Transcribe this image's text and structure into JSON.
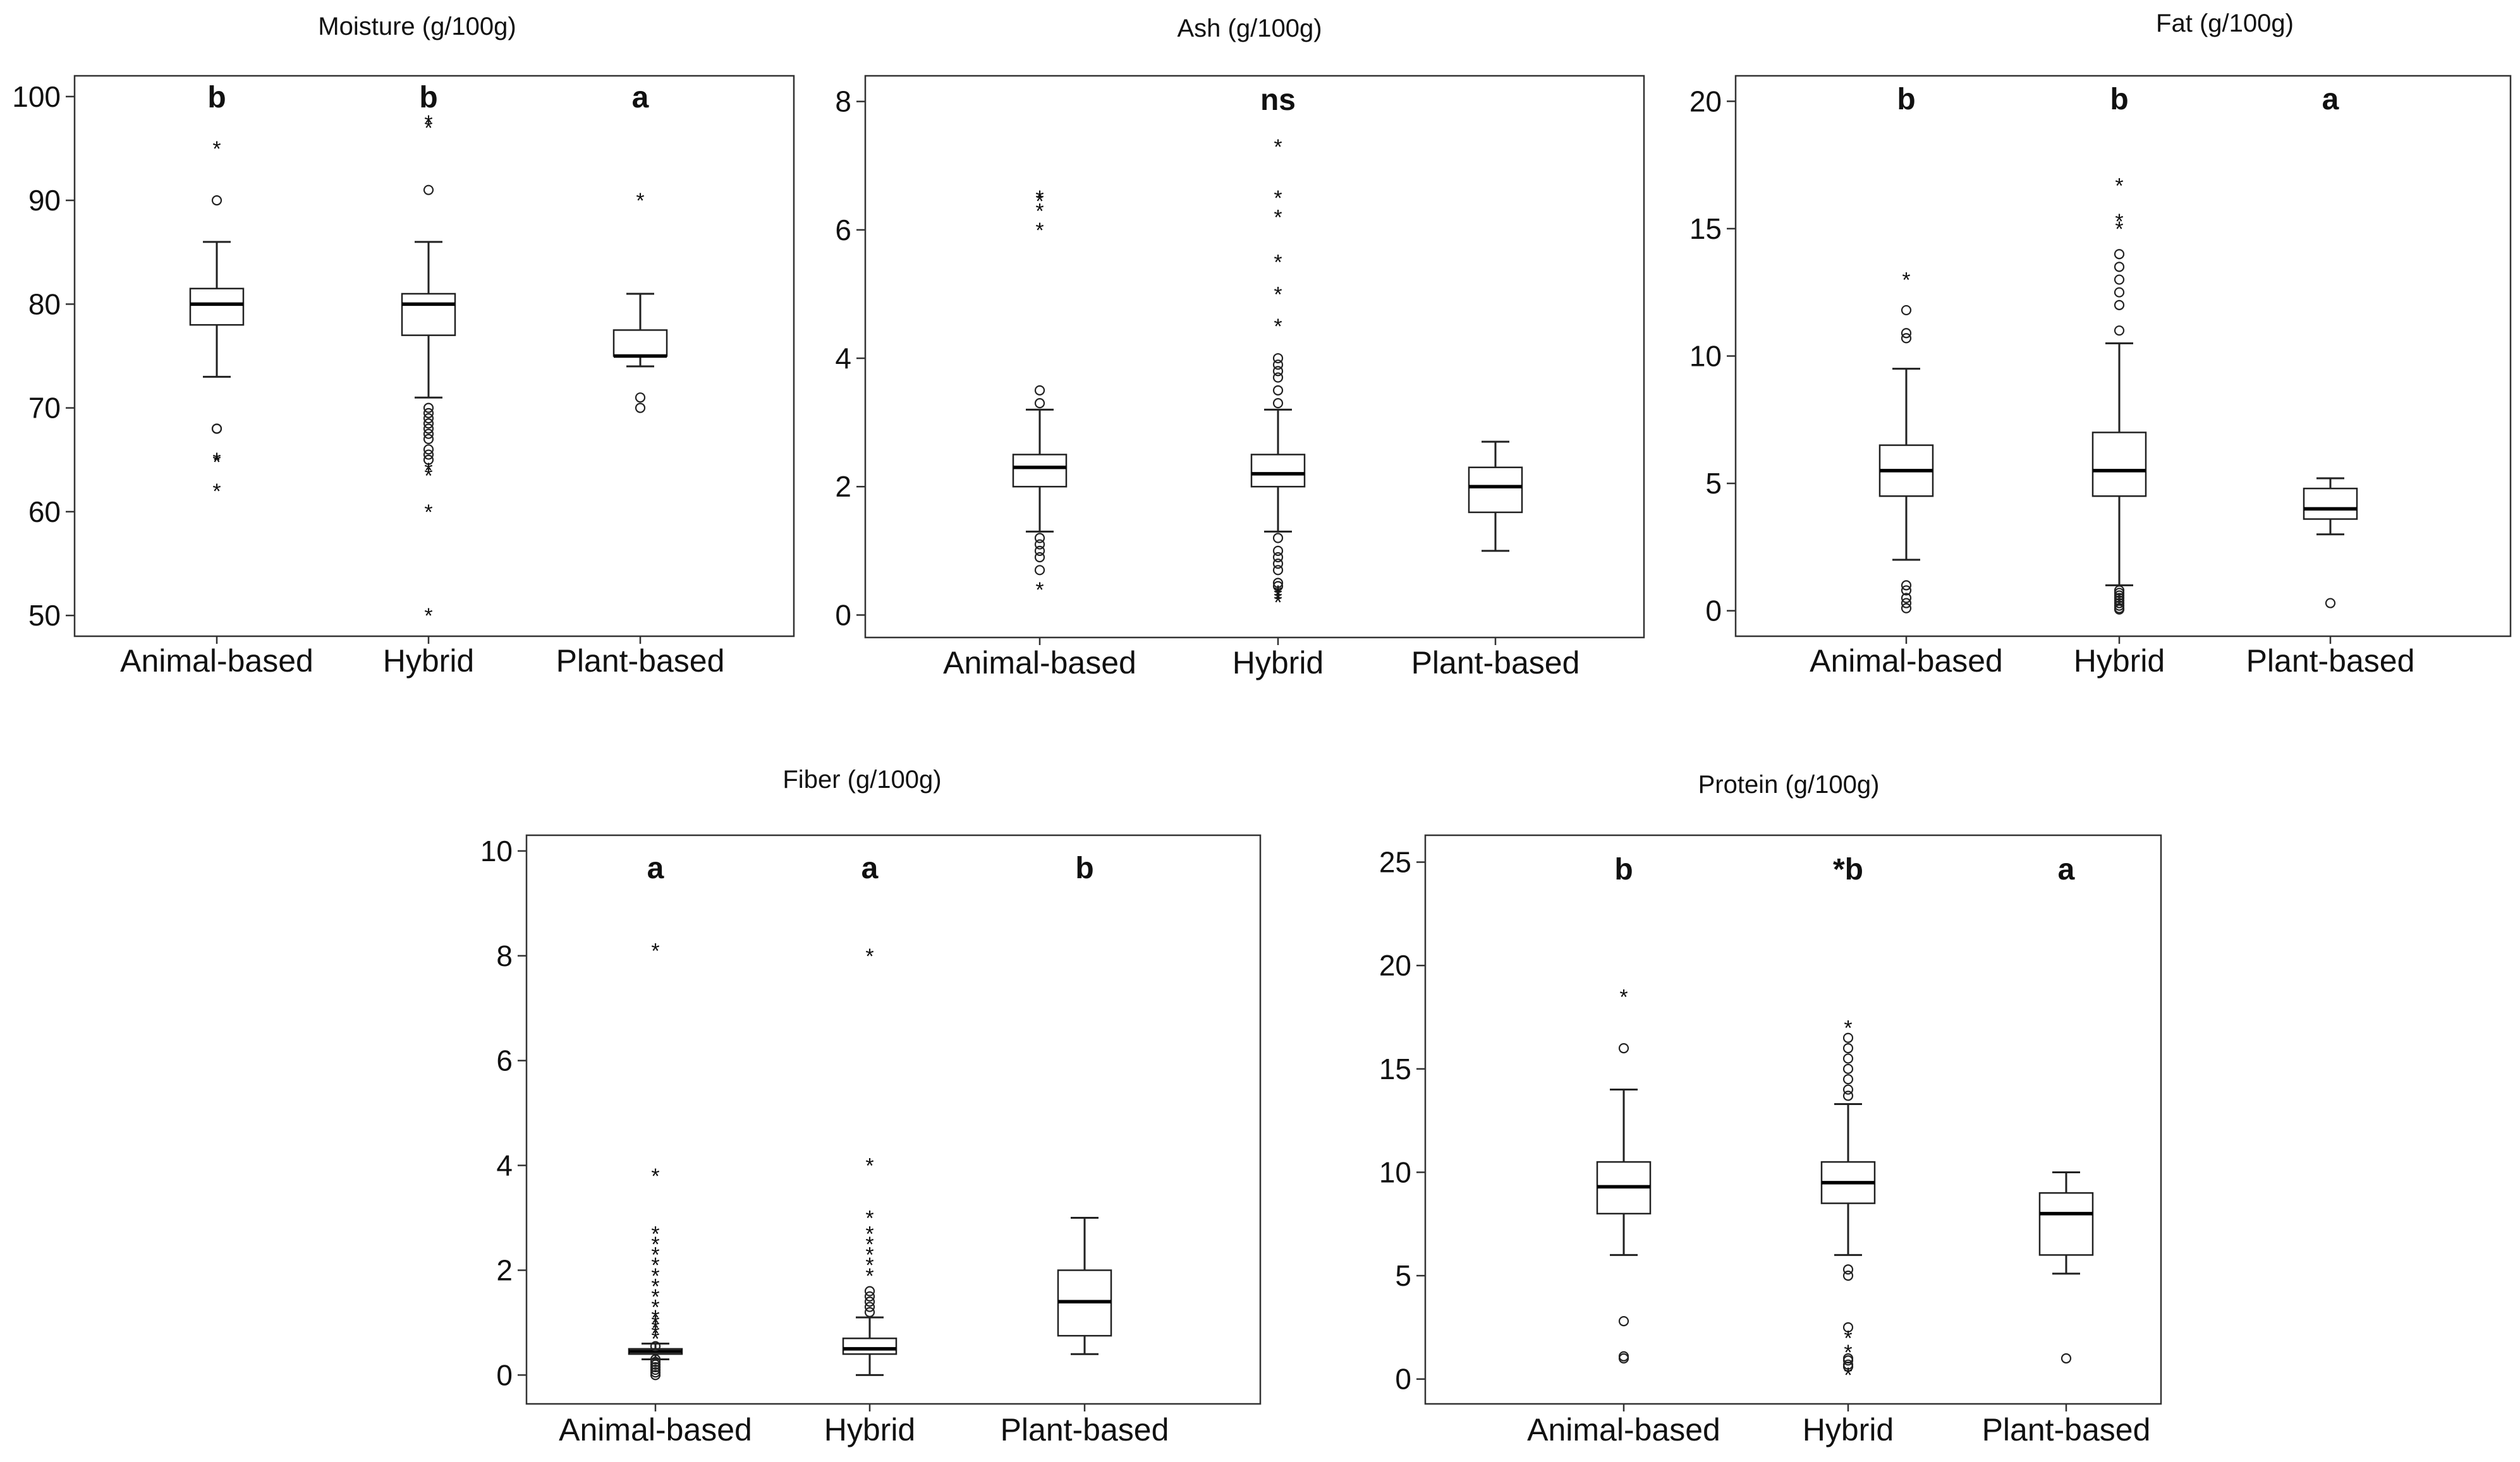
{
  "chart_data": [
    {
      "type": "boxplot",
      "title": "Moisture (g/100g)",
      "categories": [
        "Animal-based",
        "Hybrid",
        "Plant-based"
      ],
      "ylim": [
        48,
        102
      ],
      "yticks": [
        50,
        60,
        70,
        80,
        90,
        100
      ],
      "letters": [
        "b",
        "b",
        "a"
      ],
      "boxes": [
        {
          "name": "Animal-based",
          "min": 73,
          "q1": 78,
          "median": 80,
          "q3": 81.5,
          "max": 86,
          "outliers": [
            90,
            68,
            68
          ],
          "extremes": [
            95,
            64.8,
            65,
            62
          ]
        },
        {
          "name": "Hybrid",
          "min": 71,
          "q1": 77,
          "median": 80,
          "q3": 81,
          "max": 86,
          "outliers": [
            91,
            70,
            69.5,
            69,
            68.5,
            68,
            67.5,
            67,
            66,
            65.5,
            65
          ],
          "extremes": [
            97.5,
            97,
            64,
            63.5,
            60,
            50
          ]
        },
        {
          "name": "Plant-based",
          "min": 74,
          "q1": 75,
          "median": 75,
          "q3": 77.5,
          "max": 81,
          "outliers": [
            71,
            70
          ],
          "extremes": [
            90
          ]
        }
      ]
    },
    {
      "type": "boxplot",
      "title": "Ash (g/100g)",
      "categories": [
        "Animal-based",
        "Hybrid",
        "Plant-based"
      ],
      "ylim": [
        -0.35,
        8.4
      ],
      "yticks": [
        0,
        2,
        4,
        6,
        8
      ],
      "letters": [
        "",
        "ns",
        ""
      ],
      "boxes": [
        {
          "name": "Animal-based",
          "min": 1.3,
          "q1": 2.0,
          "median": 2.3,
          "q3": 2.5,
          "max": 3.2,
          "outliers": [
            3.5,
            3.3,
            1.2,
            1.1,
            1.0,
            0.9,
            0.7
          ],
          "extremes": [
            6.5,
            6.45,
            6.3,
            6.0,
            0.4
          ]
        },
        {
          "name": "Hybrid",
          "min": 1.3,
          "q1": 2.0,
          "median": 2.2,
          "q3": 2.5,
          "max": 3.2,
          "outliers": [
            4.0,
            3.9,
            3.8,
            3.7,
            3.5,
            3.3,
            1.2,
            1.0,
            0.9,
            0.8,
            0.7,
            0.5,
            0.45
          ],
          "extremes": [
            7.3,
            6.5,
            6.2,
            5.5,
            5.0,
            4.5,
            0.35,
            0.3,
            0.25,
            0.2
          ]
        },
        {
          "name": "Plant-based",
          "min": 1.0,
          "q1": 1.6,
          "median": 2.0,
          "q3": 2.3,
          "max": 2.7,
          "outliers": [],
          "extremes": []
        }
      ]
    },
    {
      "type": "boxplot",
      "title": "Fat (g/100g)",
      "categories": [
        "Animal-based",
        "Hybrid",
        "Plant-based"
      ],
      "ylim": [
        -1.0,
        21.0
      ],
      "yticks": [
        0,
        5,
        10,
        15,
        20
      ],
      "letters": [
        "b",
        "b",
        "a"
      ],
      "boxes": [
        {
          "name": "Animal-based",
          "min": 2.0,
          "q1": 4.5,
          "median": 5.5,
          "q3": 6.5,
          "max": 9.5,
          "outliers": [
            11.8,
            10.9,
            10.7,
            1.0,
            0.8,
            0.5,
            0.3,
            0.1
          ],
          "extremes": [
            13.0
          ]
        },
        {
          "name": "Hybrid",
          "min": 1.0,
          "q1": 4.5,
          "median": 5.5,
          "q3": 7.0,
          "max": 10.5,
          "outliers": [
            14.0,
            13.5,
            13.0,
            12.5,
            12.0,
            11.0,
            0.8,
            0.7,
            0.6,
            0.5,
            0.4,
            0.3,
            0.2,
            0.1,
            0.05
          ],
          "extremes": [
            16.7,
            15.3,
            15.0
          ]
        },
        {
          "name": "Plant-based",
          "min": 3.0,
          "q1": 3.6,
          "median": 4.0,
          "q3": 4.8,
          "max": 5.2,
          "outliers": [
            0.3
          ],
          "extremes": []
        }
      ]
    },
    {
      "type": "boxplot",
      "title": "Fiber (g/100g)",
      "categories": [
        "Animal-based",
        "Hybrid",
        "Plant-based"
      ],
      "ylim": [
        -0.55,
        10.3
      ],
      "yticks": [
        0,
        2,
        4,
        6,
        8,
        10
      ],
      "letters": [
        "a",
        "a",
        "b"
      ],
      "boxes": [
        {
          "name": "Animal-based",
          "min": 0.3,
          "q1": 0.4,
          "median": 0.45,
          "q3": 0.5,
          "max": 0.6,
          "outliers": [
            0.55,
            0.3,
            0.25,
            0.2,
            0.15,
            0.1,
            0.05,
            0.0
          ],
          "extremes": [
            8.1,
            3.8,
            2.7,
            2.5,
            2.3,
            2.1,
            1.9,
            1.7,
            1.5,
            1.3,
            1.1,
            1.0,
            0.9,
            0.8,
            0.7
          ]
        },
        {
          "name": "Hybrid",
          "min": 0.0,
          "q1": 0.4,
          "median": 0.5,
          "q3": 0.7,
          "max": 1.1,
          "outliers": [
            1.6,
            1.5,
            1.4,
            1.3,
            1.2
          ],
          "extremes": [
            8.0,
            4.0,
            3.0,
            2.7,
            2.5,
            2.3,
            2.1,
            1.9
          ]
        },
        {
          "name": "Plant-based",
          "min": 0.4,
          "q1": 0.75,
          "median": 1.4,
          "q3": 2.0,
          "max": 3.0,
          "outliers": [],
          "extremes": []
        }
      ]
    },
    {
      "type": "boxplot",
      "title": "Protein (g/100g)",
      "categories": [
        "Animal-based",
        "Hybrid",
        "Plant-based"
      ],
      "ylim": [
        -1.2,
        26.3
      ],
      "yticks": [
        0,
        5,
        10,
        15,
        20,
        25
      ],
      "letters": [
        "b",
        "*b",
        "a"
      ],
      "boxes": [
        {
          "name": "Animal-based",
          "min": 6.0,
          "q1": 8.0,
          "median": 9.3,
          "q3": 10.5,
          "max": 14.0,
          "outliers": [
            16.0,
            2.8,
            1.1,
            1.0
          ],
          "extremes": [
            18.5
          ]
        },
        {
          "name": "Hybrid",
          "min": 6.0,
          "q1": 8.5,
          "median": 9.5,
          "q3": 10.5,
          "max": 13.3,
          "outliers": [
            16.5,
            16.0,
            15.5,
            15.0,
            14.5,
            14.0,
            13.7,
            5.3,
            5.0,
            2.5,
            1.0,
            0.9,
            0.7,
            0.6
          ],
          "extremes": [
            17.0,
            2.0,
            1.3,
            0.2
          ]
        },
        {
          "name": "Plant-based",
          "min": 5.1,
          "q1": 6.0,
          "median": 8.0,
          "q3": 9.0,
          "max": 10.0,
          "outliers": [
            1.0
          ],
          "extremes": []
        }
      ]
    }
  ]
}
